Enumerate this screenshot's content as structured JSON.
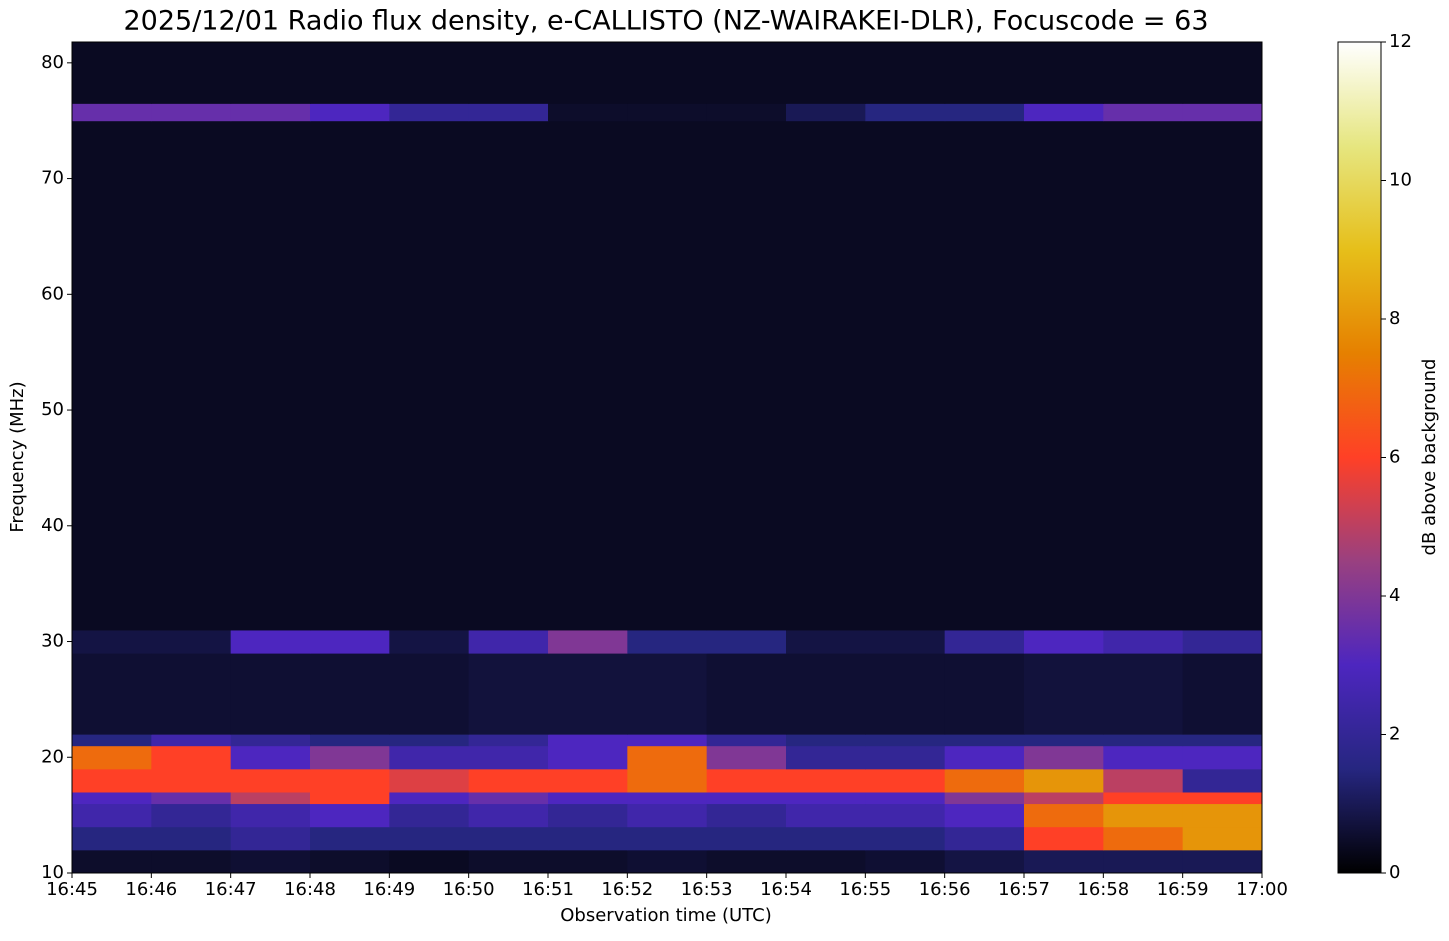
{
  "chart_data": {
    "type": "heatmap",
    "title": "2025/12/01 Radio flux density, e-CALLISTO (NZ-WAIRAKEI-DLR), Focuscode = 63",
    "xlabel": "Observation time (UTC)",
    "ylabel": "Frequency (MHz)",
    "xticks": [
      "16:45",
      "16:46",
      "16:47",
      "16:48",
      "16:49",
      "16:50",
      "16:51",
      "16:52",
      "16:53",
      "16:54",
      "16:55",
      "16:56",
      "16:57",
      "16:58",
      "16:59",
      "17:00"
    ],
    "ylim": [
      10,
      81.8
    ],
    "yticks": [
      10,
      20,
      30,
      40,
      50,
      60,
      70,
      80
    ],
    "ybins": [
      10,
      12,
      14,
      16,
      17,
      19,
      21,
      22,
      29,
      31,
      75,
      76.5,
      81.8
    ],
    "values": [
      [
        0.5,
        0.5,
        0.6,
        0.5,
        0.4,
        0.5,
        0.5,
        0.6,
        0.5,
        0.5,
        0.6,
        0.8,
        1,
        1,
        1
      ],
      [
        1.5,
        1.5,
        2,
        1.5,
        1.5,
        1.5,
        1.5,
        1.5,
        1.5,
        1.5,
        1.5,
        2,
        6,
        7,
        8
      ],
      [
        2.5,
        2,
        2.5,
        3,
        2,
        2.5,
        2,
        2.5,
        2,
        2.5,
        2.5,
        3,
        7,
        8,
        8
      ],
      [
        3,
        3.5,
        5,
        6,
        3,
        3.5,
        3,
        3,
        3,
        3,
        3,
        4,
        5,
        6,
        6
      ],
      [
        6,
        6,
        6,
        6,
        5.5,
        6,
        6,
        7,
        6,
        6,
        6,
        7,
        8,
        5,
        2
      ],
      [
        7,
        6,
        3,
        4,
        2.5,
        2.5,
        3,
        7,
        4,
        2,
        2,
        3,
        4,
        3,
        3
      ],
      [
        1.5,
        2.5,
        2,
        1.5,
        1.5,
        2,
        3,
        3,
        2,
        1.5,
        1.5,
        1.5,
        1.5,
        1.5,
        1.5
      ],
      [
        0.6,
        0.6,
        0.6,
        0.6,
        0.6,
        0.7,
        0.7,
        0.7,
        0.6,
        0.6,
        0.6,
        0.6,
        0.7,
        0.7,
        0.6
      ],
      [
        0.8,
        0.8,
        3,
        3,
        0.8,
        2.5,
        4,
        1.5,
        1.5,
        0.8,
        0.8,
        2,
        3,
        2.5,
        2
      ],
      [
        0.4,
        0.4,
        0.4,
        0.4,
        0.4,
        0.4,
        0.4,
        0.4,
        0.4,
        0.4,
        0.4,
        0.4,
        0.4,
        0.4,
        0.4
      ],
      [
        3.5,
        3.5,
        3.5,
        3,
        2,
        2,
        0.5,
        0.5,
        0.5,
        1,
        1.5,
        1.5,
        3,
        3.5,
        3.5
      ],
      [
        0.4,
        0.4,
        0.4,
        0.4,
        0.4,
        0.4,
        0.4,
        0.4,
        0.4,
        0.4,
        0.4,
        0.4,
        0.4,
        0.4,
        0.4
      ]
    ],
    "colormap": [
      "#000000",
      "#262680",
      "#4d26bf",
      "#994080",
      "#ff4026",
      "#e68000",
      "#e6bf1a",
      "#e6e680",
      "#ffffff"
    ],
    "clim": [
      0,
      12
    ],
    "cticks": [
      0,
      2,
      4,
      6,
      8,
      10,
      12
    ],
    "colorbar_label": "dB above background"
  }
}
